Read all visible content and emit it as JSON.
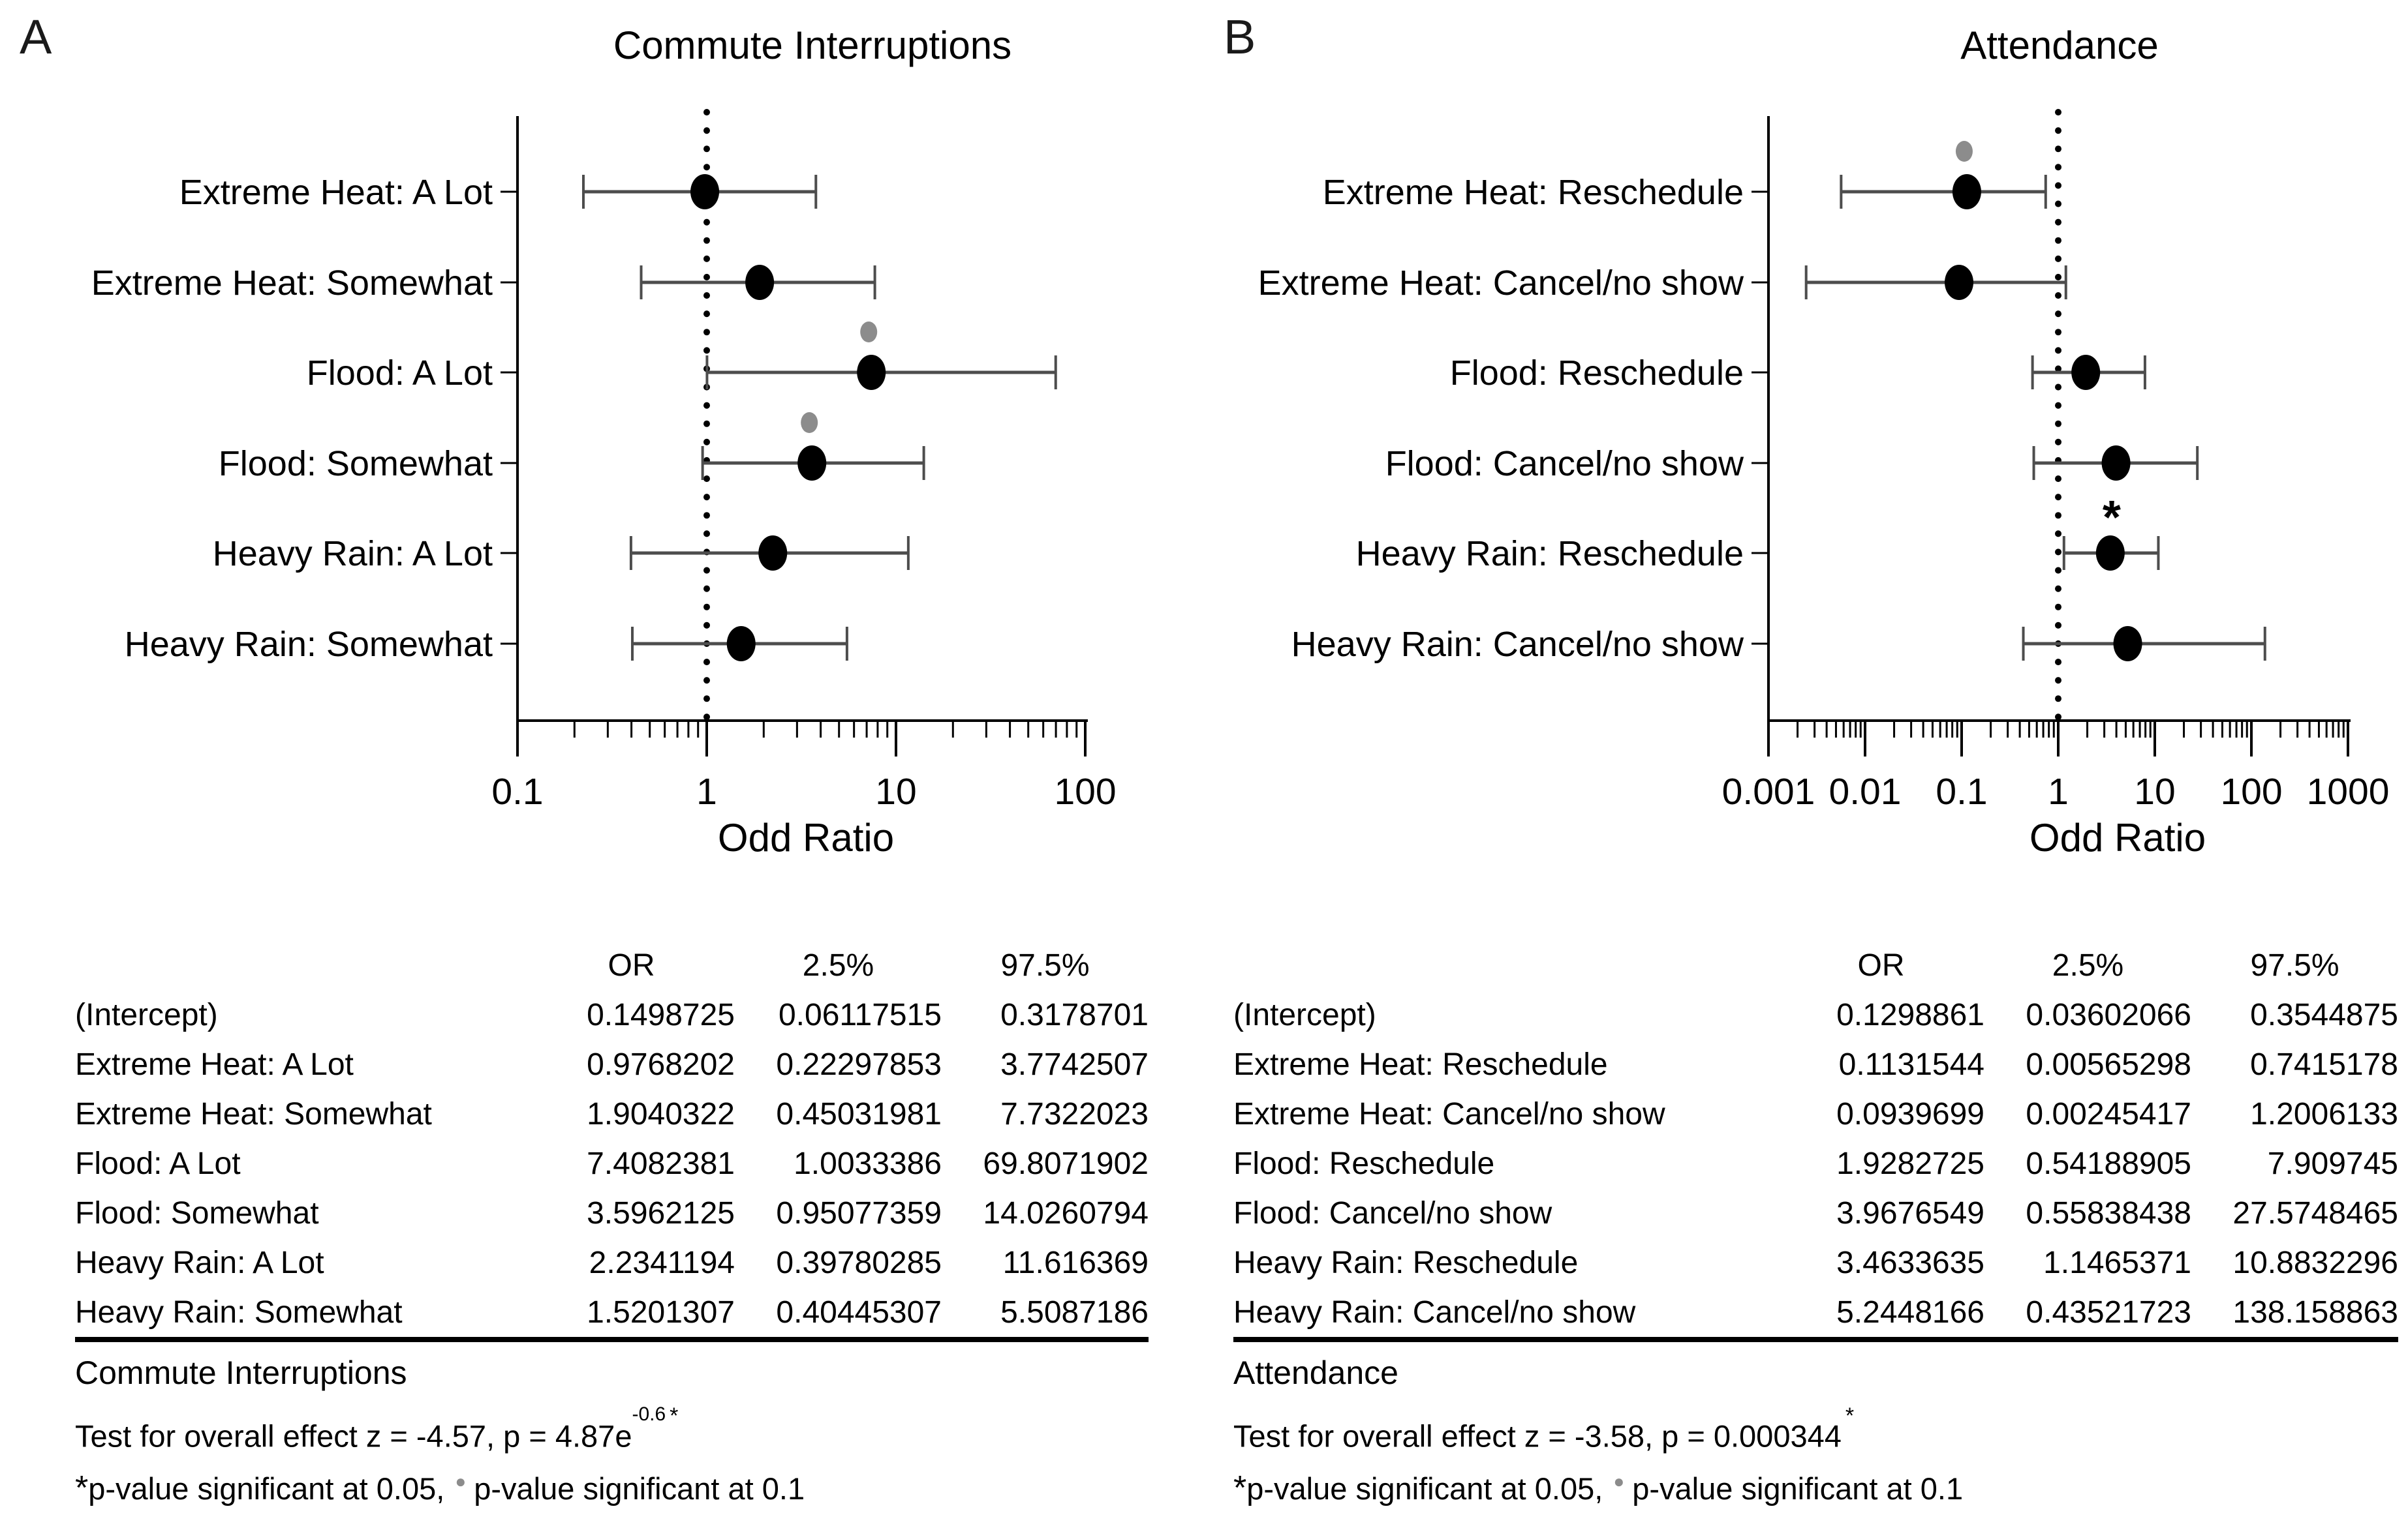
{
  "colors": {
    "marker": "#000000",
    "gray_marker": "#8c8c8c",
    "error_bar": "#4d4d4d",
    "text": "#000000",
    "background": "#ffffff"
  },
  "chart_data": [
    {
      "type": "scatter",
      "subtype": "forest-plot",
      "panel_label": "A",
      "title": "Commute Interruptions",
      "xlabel": "Odd Ratio",
      "x_scale": "log",
      "xlim": [
        0.1,
        100
      ],
      "x_ticks": [
        "0.1",
        "1",
        "10",
        "100"
      ],
      "reference_line": 1,
      "grid": false,
      "legend_position": "none",
      "rows": [
        {
          "label": "Extreme Heat: A Lot",
          "or": 0.9768202,
          "ci_low": 0.22297853,
          "ci_high": 3.7742507,
          "marker": ""
        },
        {
          "label": "Extreme Heat: Somewhat",
          "or": 1.9040322,
          "ci_low": 0.45031981,
          "ci_high": 7.7322023,
          "marker": ""
        },
        {
          "label": "Flood: A Lot",
          "or": 7.4082381,
          "ci_low": 1.0033386,
          "ci_high": 69.8071902,
          "marker": "gray-dot"
        },
        {
          "label": "Flood: Somewhat",
          "or": 3.5962125,
          "ci_low": 0.95077359,
          "ci_high": 14.0260794,
          "marker": "gray-dot"
        },
        {
          "label": "Heavy Rain: A Lot",
          "or": 2.2341194,
          "ci_low": 0.39780285,
          "ci_high": 11.616369,
          "marker": ""
        },
        {
          "label": "Heavy Rain: Somewhat",
          "or": 1.5201307,
          "ci_low": 0.40445307,
          "ci_high": 5.5087186,
          "marker": ""
        }
      ],
      "table": {
        "headers": [
          "OR",
          "2.5%",
          "97.5%"
        ],
        "rows": [
          {
            "label": "(Intercept)",
            "or": "0.1498725",
            "lo": "0.06117515",
            "hi": "0.3178701"
          },
          {
            "label": "Extreme Heat: A Lot",
            "or": "0.9768202",
            "lo": "0.22297853",
            "hi": "3.7742507"
          },
          {
            "label": "Extreme Heat: Somewhat",
            "or": "1.9040322",
            "lo": "0.45031981",
            "hi": "7.7322023"
          },
          {
            "label": "Flood: A Lot",
            "or": "7.4082381",
            "lo": "1.0033386",
            "hi": "69.8071902"
          },
          {
            "label": "Flood: Somewhat",
            "or": "3.5962125",
            "lo": "0.95077359",
            "hi": "14.0260794"
          },
          {
            "label": "Heavy Rain: A Lot",
            "or": "2.2341194",
            "lo": "0.39780285",
            "hi": "11.616369"
          },
          {
            "label": "Heavy Rain: Somewhat",
            "or": "1.5201307",
            "lo": "0.40445307",
            "hi": "5.5087186"
          }
        ],
        "caption": "Commute Interruptions"
      },
      "notes": {
        "test_text": "Test for overall effect z = -4.57, p = 4.87e",
        "test_sup": "-0.6",
        "test_star": "*",
        "sig1_star": "*",
        "sig1_text": "p-value significant at 0.05,",
        "sig2_dot": "●",
        "sig2_text": "p-value significant at 0.1"
      }
    },
    {
      "type": "scatter",
      "subtype": "forest-plot",
      "panel_label": "B",
      "title": "Attendance",
      "xlabel": "Odd Ratio",
      "x_scale": "log",
      "xlim": [
        0.001,
        1000
      ],
      "x_ticks": [
        "0.001",
        "0.01",
        "0.1",
        "1",
        "10",
        "100",
        "1000"
      ],
      "reference_line": 1,
      "grid": false,
      "legend_position": "none",
      "rows": [
        {
          "label": "Extreme Heat: Reschedule",
          "or": 0.1131544,
          "ci_low": 0.00565298,
          "ci_high": 0.7415178,
          "marker": "gray-dot"
        },
        {
          "label": "Extreme Heat: Cancel/no show",
          "or": 0.0939699,
          "ci_low": 0.00245417,
          "ci_high": 1.2006133,
          "marker": ""
        },
        {
          "label": "Flood: Reschedule",
          "or": 1.9282725,
          "ci_low": 0.54188905,
          "ci_high": 7.909745,
          "marker": ""
        },
        {
          "label": "Flood: Cancel/no show",
          "or": 3.9676549,
          "ci_low": 0.55838438,
          "ci_high": 27.5748465,
          "marker": ""
        },
        {
          "label": "Heavy Rain: Reschedule",
          "or": 3.4633635,
          "ci_low": 1.1465371,
          "ci_high": 10.8832296,
          "marker": "star"
        },
        {
          "label": "Heavy Rain: Cancel/no show",
          "or": 5.2448166,
          "ci_low": 0.43521723,
          "ci_high": 138.158863,
          "marker": ""
        }
      ],
      "table": {
        "headers": [
          "OR",
          "2.5%",
          "97.5%"
        ],
        "rows": [
          {
            "label": "(Intercept)",
            "or": "0.1298861",
            "lo": "0.03602066",
            "hi": "0.3544875"
          },
          {
            "label": "Extreme Heat: Reschedule",
            "or": "0.1131544",
            "lo": "0.00565298",
            "hi": "0.7415178"
          },
          {
            "label": "Extreme Heat: Cancel/no show",
            "or": "0.0939699",
            "lo": "0.00245417",
            "hi": "1.2006133"
          },
          {
            "label": "Flood: Reschedule",
            "or": "1.9282725",
            "lo": "0.54188905",
            "hi": "7.909745"
          },
          {
            "label": "Flood: Cancel/no show",
            "or": "3.9676549",
            "lo": "0.55838438",
            "hi": "27.5748465"
          },
          {
            "label": "Heavy Rain: Reschedule",
            "or": "3.4633635",
            "lo": "1.1465371",
            "hi": "10.8832296"
          },
          {
            "label": "Heavy Rain: Cancel/no show",
            "or": "5.2448166",
            "lo": "0.43521723",
            "hi": "138.158863"
          }
        ],
        "caption": "Attendance"
      },
      "notes": {
        "test_text": "Test for overall effect z = -3.58, p = 0.000344",
        "test_sup": "",
        "test_star": "*",
        "sig1_star": "*",
        "sig1_text": "p-value significant at 0.05,",
        "sig2_dot": "●",
        "sig2_text": "p-value significant at 0.1"
      }
    }
  ]
}
